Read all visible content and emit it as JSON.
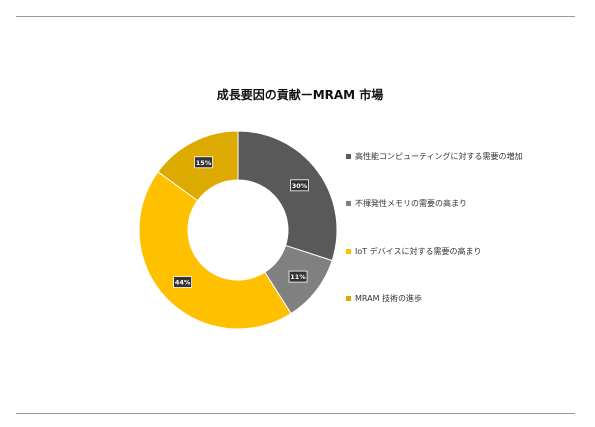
{
  "chart_data": {
    "type": "pie",
    "variant": "donut",
    "title": "成長要因の貢献ーMRAM 市場",
    "legend_position": "right",
    "slices": [
      {
        "label": "高性能コンピューティングに対する需要の増加",
        "value": 30,
        "display": "30%",
        "color": "#595959"
      },
      {
        "label": "不揮発性メモリの需要の高まり",
        "value": 11,
        "display": "11%",
        "color": "#808080"
      },
      {
        "label": "IoT デバイスに対する需要の高まり",
        "value": 44,
        "display": "44%",
        "color": "#ffc000"
      },
      {
        "label": "MRAM 技術の進歩",
        "value": 15,
        "display": "15%",
        "color": "#dcaa00"
      }
    ]
  }
}
